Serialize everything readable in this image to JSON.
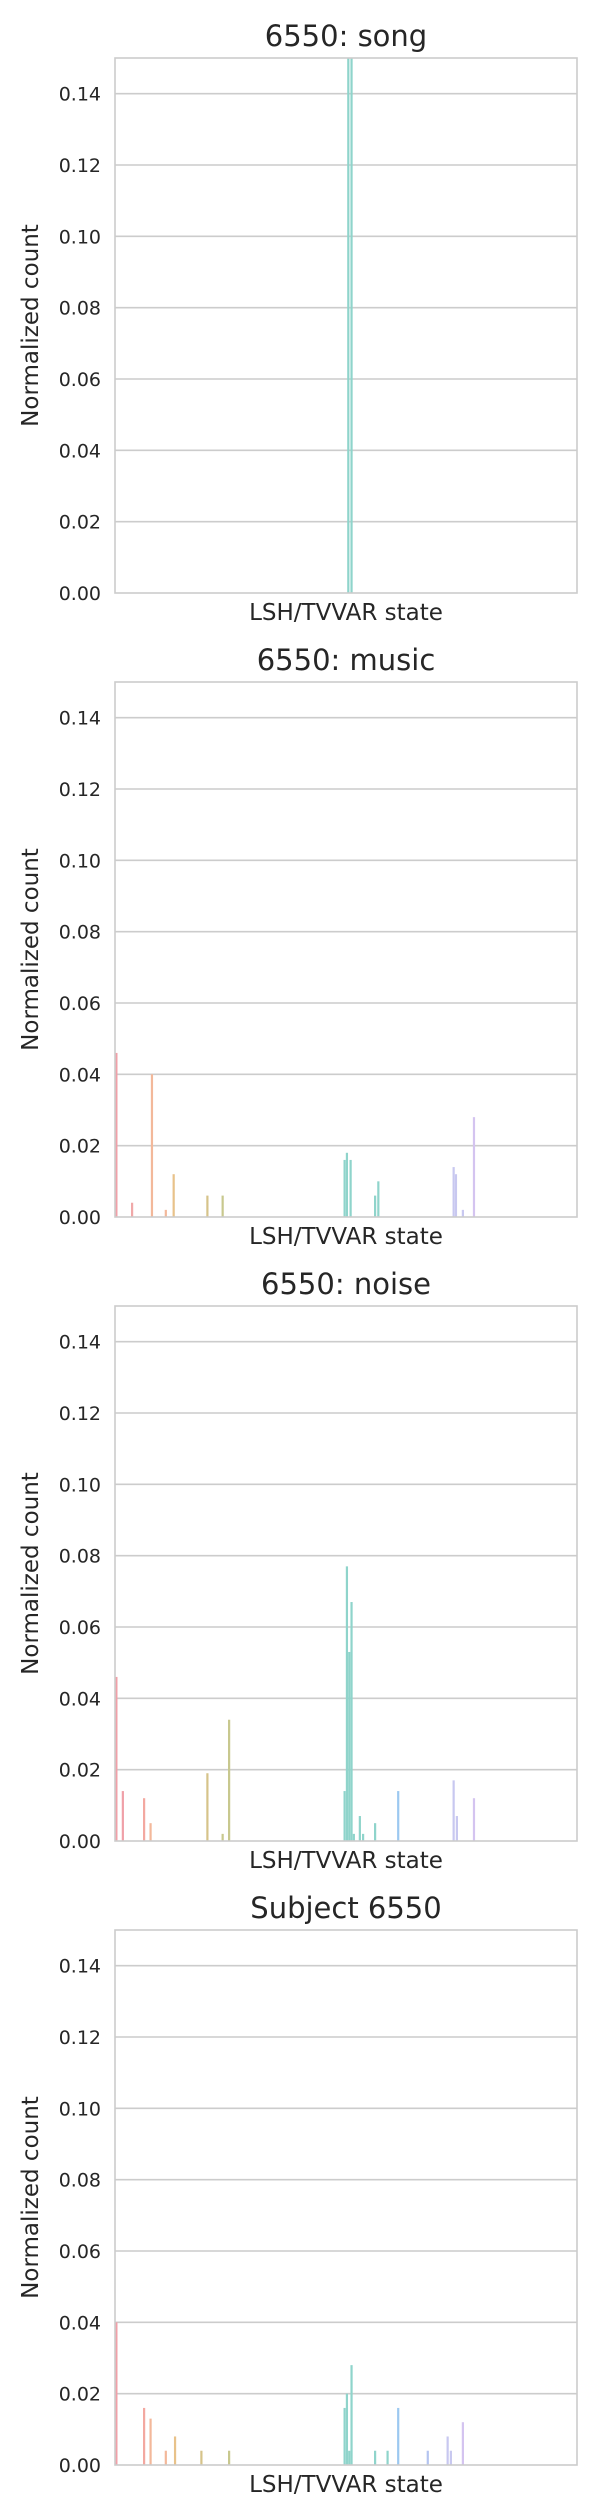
{
  "chart_data": [
    {
      "type": "bar",
      "title": "6550: song",
      "xlabel": "LSH/TVVAR state",
      "ylabel": "Normalized count",
      "ylim": [
        0,
        0.15
      ],
      "yticks": [
        "0.00",
        "0.02",
        "0.04",
        "0.06",
        "0.08",
        "0.10",
        "0.12",
        "0.14"
      ],
      "grid": true,
      "bars": [
        {
          "x": 0.505,
          "value": 0.15,
          "color": "#8fd4cb"
        },
        {
          "x": 0.512,
          "value": 0.15,
          "color": "#8fd4cb"
        }
      ]
    },
    {
      "type": "bar",
      "title": "6550: music",
      "xlabel": "LSH/TVVAR state",
      "ylabel": "Normalized count",
      "ylim": [
        0,
        0.15
      ],
      "yticks": [
        "0.00",
        "0.02",
        "0.04",
        "0.06",
        "0.08",
        "0.10",
        "0.12",
        "0.14"
      ],
      "grid": true,
      "bars": [
        {
          "x": 0.003,
          "value": 0.046,
          "color": "#f0a0a8"
        },
        {
          "x": 0.037,
          "value": 0.004,
          "color": "#f0a8a8"
        },
        {
          "x": 0.08,
          "value": 0.04,
          "color": "#f3b89a"
        },
        {
          "x": 0.11,
          "value": 0.002,
          "color": "#f3b89a"
        },
        {
          "x": 0.127,
          "value": 0.012,
          "color": "#e8c28a"
        },
        {
          "x": 0.2,
          "value": 0.006,
          "color": "#d6c38a"
        },
        {
          "x": 0.233,
          "value": 0.006,
          "color": "#c8c88e"
        },
        {
          "x": 0.497,
          "value": 0.016,
          "color": "#8fd4cb"
        },
        {
          "x": 0.502,
          "value": 0.018,
          "color": "#8fd4cb"
        },
        {
          "x": 0.51,
          "value": 0.016,
          "color": "#8fd4cb"
        },
        {
          "x": 0.563,
          "value": 0.006,
          "color": "#8fd4cb"
        },
        {
          "x": 0.57,
          "value": 0.01,
          "color": "#8fd4cb"
        },
        {
          "x": 0.733,
          "value": 0.014,
          "color": "#c8c8f0"
        },
        {
          "x": 0.738,
          "value": 0.012,
          "color": "#c8c8f0"
        },
        {
          "x": 0.753,
          "value": 0.002,
          "color": "#c8c8f0"
        },
        {
          "x": 0.777,
          "value": 0.028,
          "color": "#d4c4f0"
        }
      ]
    },
    {
      "type": "bar",
      "title": "6550: noise",
      "xlabel": "LSH/TVVAR state",
      "ylabel": "Normalized count",
      "ylim": [
        0,
        0.15
      ],
      "yticks": [
        "0.00",
        "0.02",
        "0.04",
        "0.06",
        "0.08",
        "0.10",
        "0.12",
        "0.14"
      ],
      "grid": true,
      "bars": [
        {
          "x": 0.003,
          "value": 0.046,
          "color": "#f0a0a8"
        },
        {
          "x": 0.017,
          "value": 0.014,
          "color": "#f0a0a8"
        },
        {
          "x": 0.063,
          "value": 0.012,
          "color": "#f3a8a0"
        },
        {
          "x": 0.077,
          "value": 0.005,
          "color": "#f3b89a"
        },
        {
          "x": 0.2,
          "value": 0.019,
          "color": "#d6c38a"
        },
        {
          "x": 0.233,
          "value": 0.002,
          "color": "#c8c88e"
        },
        {
          "x": 0.247,
          "value": 0.034,
          "color": "#c8c88e"
        },
        {
          "x": 0.497,
          "value": 0.014,
          "color": "#8fd4cb"
        },
        {
          "x": 0.502,
          "value": 0.077,
          "color": "#8fd4cb"
        },
        {
          "x": 0.507,
          "value": 0.053,
          "color": "#8fd4cb"
        },
        {
          "x": 0.512,
          "value": 0.067,
          "color": "#8fd4cb"
        },
        {
          "x": 0.517,
          "value": 0.002,
          "color": "#8fd4cb"
        },
        {
          "x": 0.53,
          "value": 0.007,
          "color": "#8fd4cb"
        },
        {
          "x": 0.537,
          "value": 0.002,
          "color": "#8fd4cb"
        },
        {
          "x": 0.563,
          "value": 0.005,
          "color": "#8fd4cb"
        },
        {
          "x": 0.613,
          "value": 0.014,
          "color": "#9cc8f0"
        },
        {
          "x": 0.733,
          "value": 0.017,
          "color": "#c8c8f0"
        },
        {
          "x": 0.74,
          "value": 0.007,
          "color": "#c8c8f0"
        },
        {
          "x": 0.777,
          "value": 0.012,
          "color": "#d4c4f0"
        }
      ]
    },
    {
      "type": "bar",
      "title": "Subject 6550",
      "xlabel": "LSH/TVVAR state",
      "ylabel": "Normalized count",
      "ylim": [
        0,
        0.15
      ],
      "yticks": [
        "0.00",
        "0.02",
        "0.04",
        "0.06",
        "0.08",
        "0.10",
        "0.12",
        "0.14"
      ],
      "grid": true,
      "bars": [
        {
          "x": 0.003,
          "value": 0.04,
          "color": "#f0a0a8"
        },
        {
          "x": 0.063,
          "value": 0.016,
          "color": "#f3a8a0"
        },
        {
          "x": 0.077,
          "value": 0.013,
          "color": "#f3b89a"
        },
        {
          "x": 0.11,
          "value": 0.004,
          "color": "#f3b89a"
        },
        {
          "x": 0.13,
          "value": 0.008,
          "color": "#e8c28a"
        },
        {
          "x": 0.187,
          "value": 0.004,
          "color": "#d6c38a"
        },
        {
          "x": 0.247,
          "value": 0.004,
          "color": "#c8c88e"
        },
        {
          "x": 0.497,
          "value": 0.016,
          "color": "#8fd4cb"
        },
        {
          "x": 0.502,
          "value": 0.02,
          "color": "#8fd4cb"
        },
        {
          "x": 0.507,
          "value": 0.004,
          "color": "#8fd4cb"
        },
        {
          "x": 0.512,
          "value": 0.028,
          "color": "#8fd4cb"
        },
        {
          "x": 0.563,
          "value": 0.004,
          "color": "#8fd4cb"
        },
        {
          "x": 0.59,
          "value": 0.004,
          "color": "#8fd4cb"
        },
        {
          "x": 0.613,
          "value": 0.016,
          "color": "#9cc8f0"
        },
        {
          "x": 0.677,
          "value": 0.004,
          "color": "#b4c4f0"
        },
        {
          "x": 0.72,
          "value": 0.008,
          "color": "#c8c8f0"
        },
        {
          "x": 0.727,
          "value": 0.004,
          "color": "#c8c8f0"
        },
        {
          "x": 0.753,
          "value": 0.012,
          "color": "#d4c4f0"
        }
      ]
    }
  ]
}
